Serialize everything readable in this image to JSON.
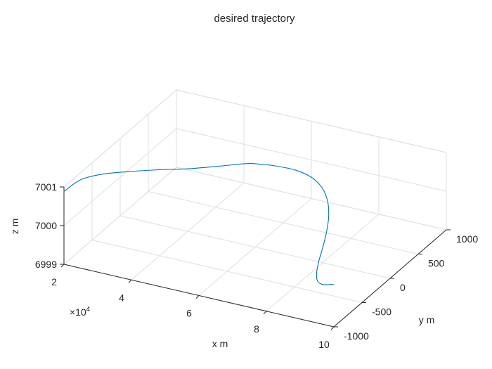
{
  "chart_data": {
    "type": "line",
    "title": "desired trajectory",
    "xlabel": "x  m",
    "ylabel": "y  m",
    "zlabel": "z  m",
    "x_exponent_label": "×10",
    "x_exponent_power": "4",
    "xlim": [
      20000,
      100000
    ],
    "ylim": [
      -1000,
      1000
    ],
    "zlim": [
      6999,
      7001
    ],
    "x_ticks": [
      20000,
      40000,
      60000,
      80000,
      100000
    ],
    "x_tick_labels": [
      "2",
      "4",
      "6",
      "8",
      "10"
    ],
    "y_ticks": [
      -1000,
      -500,
      0,
      500,
      1000
    ],
    "y_tick_labels": [
      "-1000",
      "-500",
      "0",
      "500",
      "1000"
    ],
    "z_ticks": [
      6999,
      7000,
      7001
    ],
    "z_tick_labels": [
      "6999",
      "7000",
      "7001"
    ],
    "grid": true,
    "series": [
      {
        "color": "#0072BD",
        "x": [
          20000,
          24000,
          28000,
          32000,
          36000,
          40000,
          44000,
          48000,
          50000,
          52000,
          56000,
          60000,
          64000,
          68000,
          72000,
          76000,
          80000,
          84000,
          88000,
          92000,
          96000,
          100000
        ],
        "y": [
          -1000,
          -951,
          -809,
          -588,
          -309,
          0,
          309,
          588,
          707,
          809,
          951,
          1000,
          951,
          809,
          588,
          309,
          0,
          -309,
          -588,
          -809,
          -951,
          -1000
        ],
        "z": [
          7000.88,
          7001.2,
          7001.25,
          7001.12,
          7000.9,
          7000.62,
          7000.38,
          7000.18,
          7000.05,
          6999.93,
          6999.72,
          6999.55,
          6999.42,
          6999.33,
          6999.3,
          6999.32,
          6999.38,
          6999.5,
          6999.62,
          6999.78,
          6999.95,
          7000.1
        ]
      }
    ]
  }
}
